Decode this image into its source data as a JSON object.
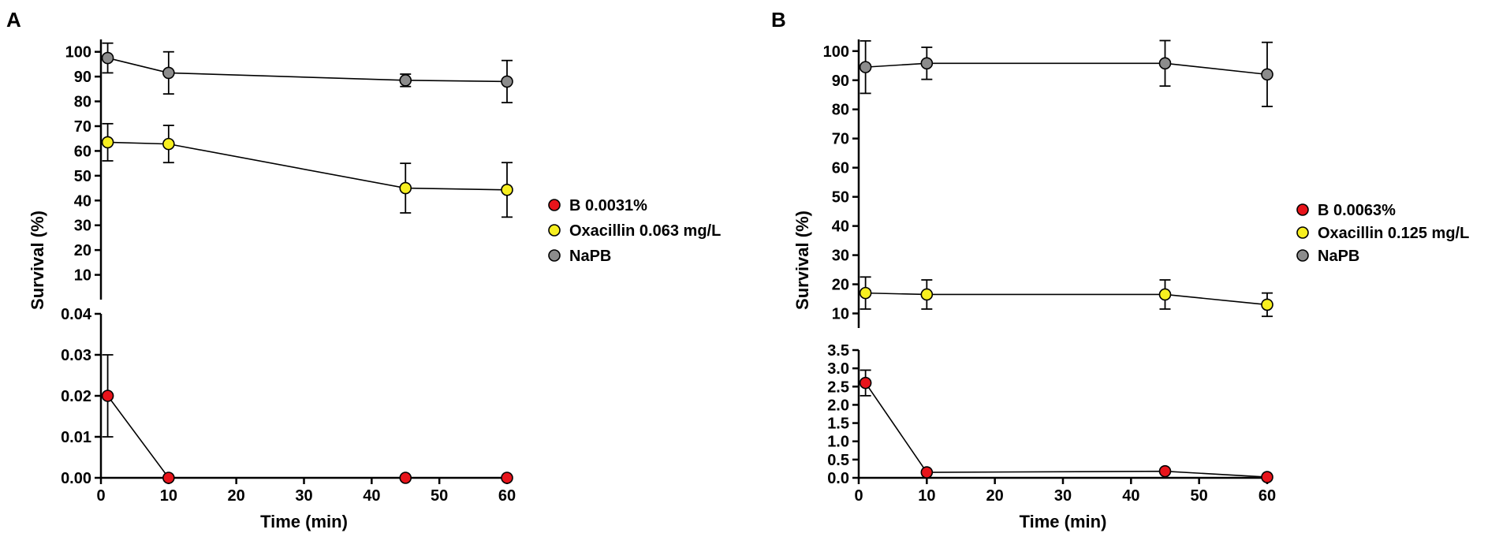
{
  "chart_data": [
    {
      "panel": "A",
      "type": "line",
      "xlabel": "Time (min)",
      "ylabel": "Survival (%)",
      "x_ticks": [
        0,
        10,
        20,
        30,
        40,
        50,
        60
      ],
      "xlim": [
        0,
        60
      ],
      "broken_y_axis": true,
      "upper_segment": {
        "ylim": [
          0,
          105
        ],
        "ticks": [
          10,
          20,
          30,
          40,
          50,
          60,
          70,
          80,
          90,
          100
        ],
        "tick_labels": [
          "10",
          "20",
          "30",
          "40",
          "50",
          "60",
          "70",
          "80",
          "90",
          "100"
        ]
      },
      "lower_segment": {
        "ylim": [
          0,
          0.04
        ],
        "ticks": [
          0,
          0.01,
          0.02,
          0.03,
          0.04
        ],
        "tick_labels": [
          "0.00",
          "0.01",
          "0.02",
          "0.03",
          "0.04"
        ]
      },
      "series": [
        {
          "name": "B 0.0031%",
          "color": "#e8141b",
          "segment": "lower",
          "x": [
            1,
            10,
            45,
            60
          ],
          "y": [
            0.02,
            0,
            0,
            0
          ],
          "err": [
            0.01,
            0,
            0,
            0
          ]
        },
        {
          "name": "Oxacillin 0.063 mg/L",
          "color": "#f7ef20",
          "segment": "upper",
          "x": [
            1,
            10,
            45,
            60
          ],
          "y": [
            63.5,
            62.8,
            45,
            44.3
          ],
          "err": [
            7.5,
            7.5,
            10,
            11
          ]
        },
        {
          "name": "NaPB",
          "color": "#8c8c8c",
          "segment": "upper",
          "x": [
            1,
            10,
            45,
            60
          ],
          "y": [
            97.5,
            91.5,
            88.5,
            88
          ],
          "err": [
            6,
            8.5,
            2.5,
            8.5
          ]
        }
      ],
      "legend": [
        "B 0.0031%",
        "Oxacillin 0.063 mg/L",
        "NaPB"
      ]
    },
    {
      "panel": "B",
      "type": "line",
      "xlabel": "Time (min)",
      "ylabel": "Survival (%)",
      "x_ticks": [
        0,
        10,
        20,
        30,
        40,
        50,
        60
      ],
      "xlim": [
        0,
        60
      ],
      "broken_y_axis": true,
      "upper_segment": {
        "ylim": [
          5,
          104
        ],
        "ticks": [
          10,
          20,
          30,
          40,
          50,
          60,
          70,
          80,
          90,
          100
        ],
        "tick_labels": [
          "10",
          "20",
          "30",
          "40",
          "50",
          "60",
          "70",
          "80",
          "90",
          "100"
        ]
      },
      "lower_segment": {
        "ylim": [
          0,
          3.5
        ],
        "ticks": [
          0,
          0.5,
          1,
          1.5,
          2,
          2.5,
          3,
          3.5
        ],
        "tick_labels": [
          "0.0",
          "0.5",
          "1.0",
          "1.5",
          "2.0",
          "2.5",
          "3.0",
          "3.5"
        ]
      },
      "series": [
        {
          "name": "B 0.0063%",
          "color": "#e8141b",
          "segment": "lower",
          "x": [
            1,
            10,
            45,
            60
          ],
          "y": [
            2.6,
            0.15,
            0.18,
            0.02
          ],
          "err": [
            0.35,
            0,
            0,
            0
          ]
        },
        {
          "name": "Oxacillin 0.125 mg/L",
          "color": "#f7ef20",
          "segment": "upper",
          "x": [
            1,
            10,
            45,
            60
          ],
          "y": [
            17,
            16.5,
            16.5,
            13
          ],
          "err": [
            5.5,
            5,
            5,
            4
          ]
        },
        {
          "name": "NaPB",
          "color": "#8c8c8c",
          "segment": "upper",
          "x": [
            1,
            10,
            45,
            60
          ],
          "y": [
            94.5,
            95.8,
            95.8,
            92
          ],
          "err": [
            9,
            5.5,
            7.8,
            11
          ]
        }
      ],
      "legend": [
        "B 0.0063%",
        "Oxacillin 0.125 mg/L",
        "NaPB"
      ]
    }
  ]
}
